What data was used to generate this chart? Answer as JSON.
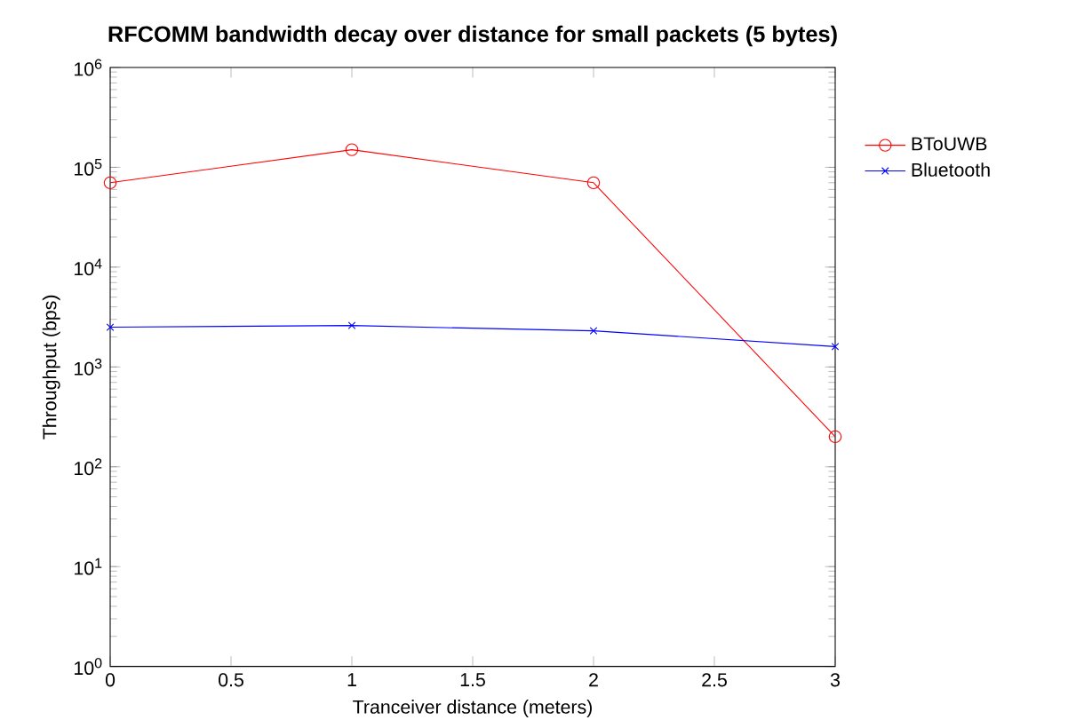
{
  "chart_data": {
    "type": "line",
    "title": "RFCOMM bandwidth decay over distance for small packets (5 bytes)",
    "xlabel": "Tranceiver distance (meters)",
    "ylabel": "Throughput (bps)",
    "x": [
      0,
      1,
      2,
      3
    ],
    "series": [
      {
        "name": "BToUWB",
        "color": "#ff0000",
        "marker": "circle",
        "values": [
          70000,
          150000,
          70000,
          200
        ]
      },
      {
        "name": "Bluetooth",
        "color": "#0000ff",
        "marker": "cross",
        "values": [
          2500,
          2600,
          2300,
          1600
        ]
      }
    ],
    "log": "y",
    "grid": false,
    "legend": "right",
    "line_style": "solid",
    "xlim": [
      0,
      3
    ],
    "xticks": [
      0,
      0.5,
      1,
      1.5,
      2,
      2.5,
      3
    ],
    "ylim": [
      1,
      1000000
    ],
    "yticks": [
      {
        "value": 1,
        "label": "10$^{0}$"
      },
      {
        "value": 10,
        "label": "10$^{1}$"
      },
      {
        "value": 100,
        "label": "10$^{2}$"
      },
      {
        "value": 1000,
        "label": "10$^{3}$"
      },
      {
        "value": 10000,
        "label": "10$^{4}$"
      },
      {
        "value": 100000,
        "label": "10$^{5}$"
      },
      {
        "value": 1000000,
        "label": "10$^{6}$"
      }
    ]
  }
}
